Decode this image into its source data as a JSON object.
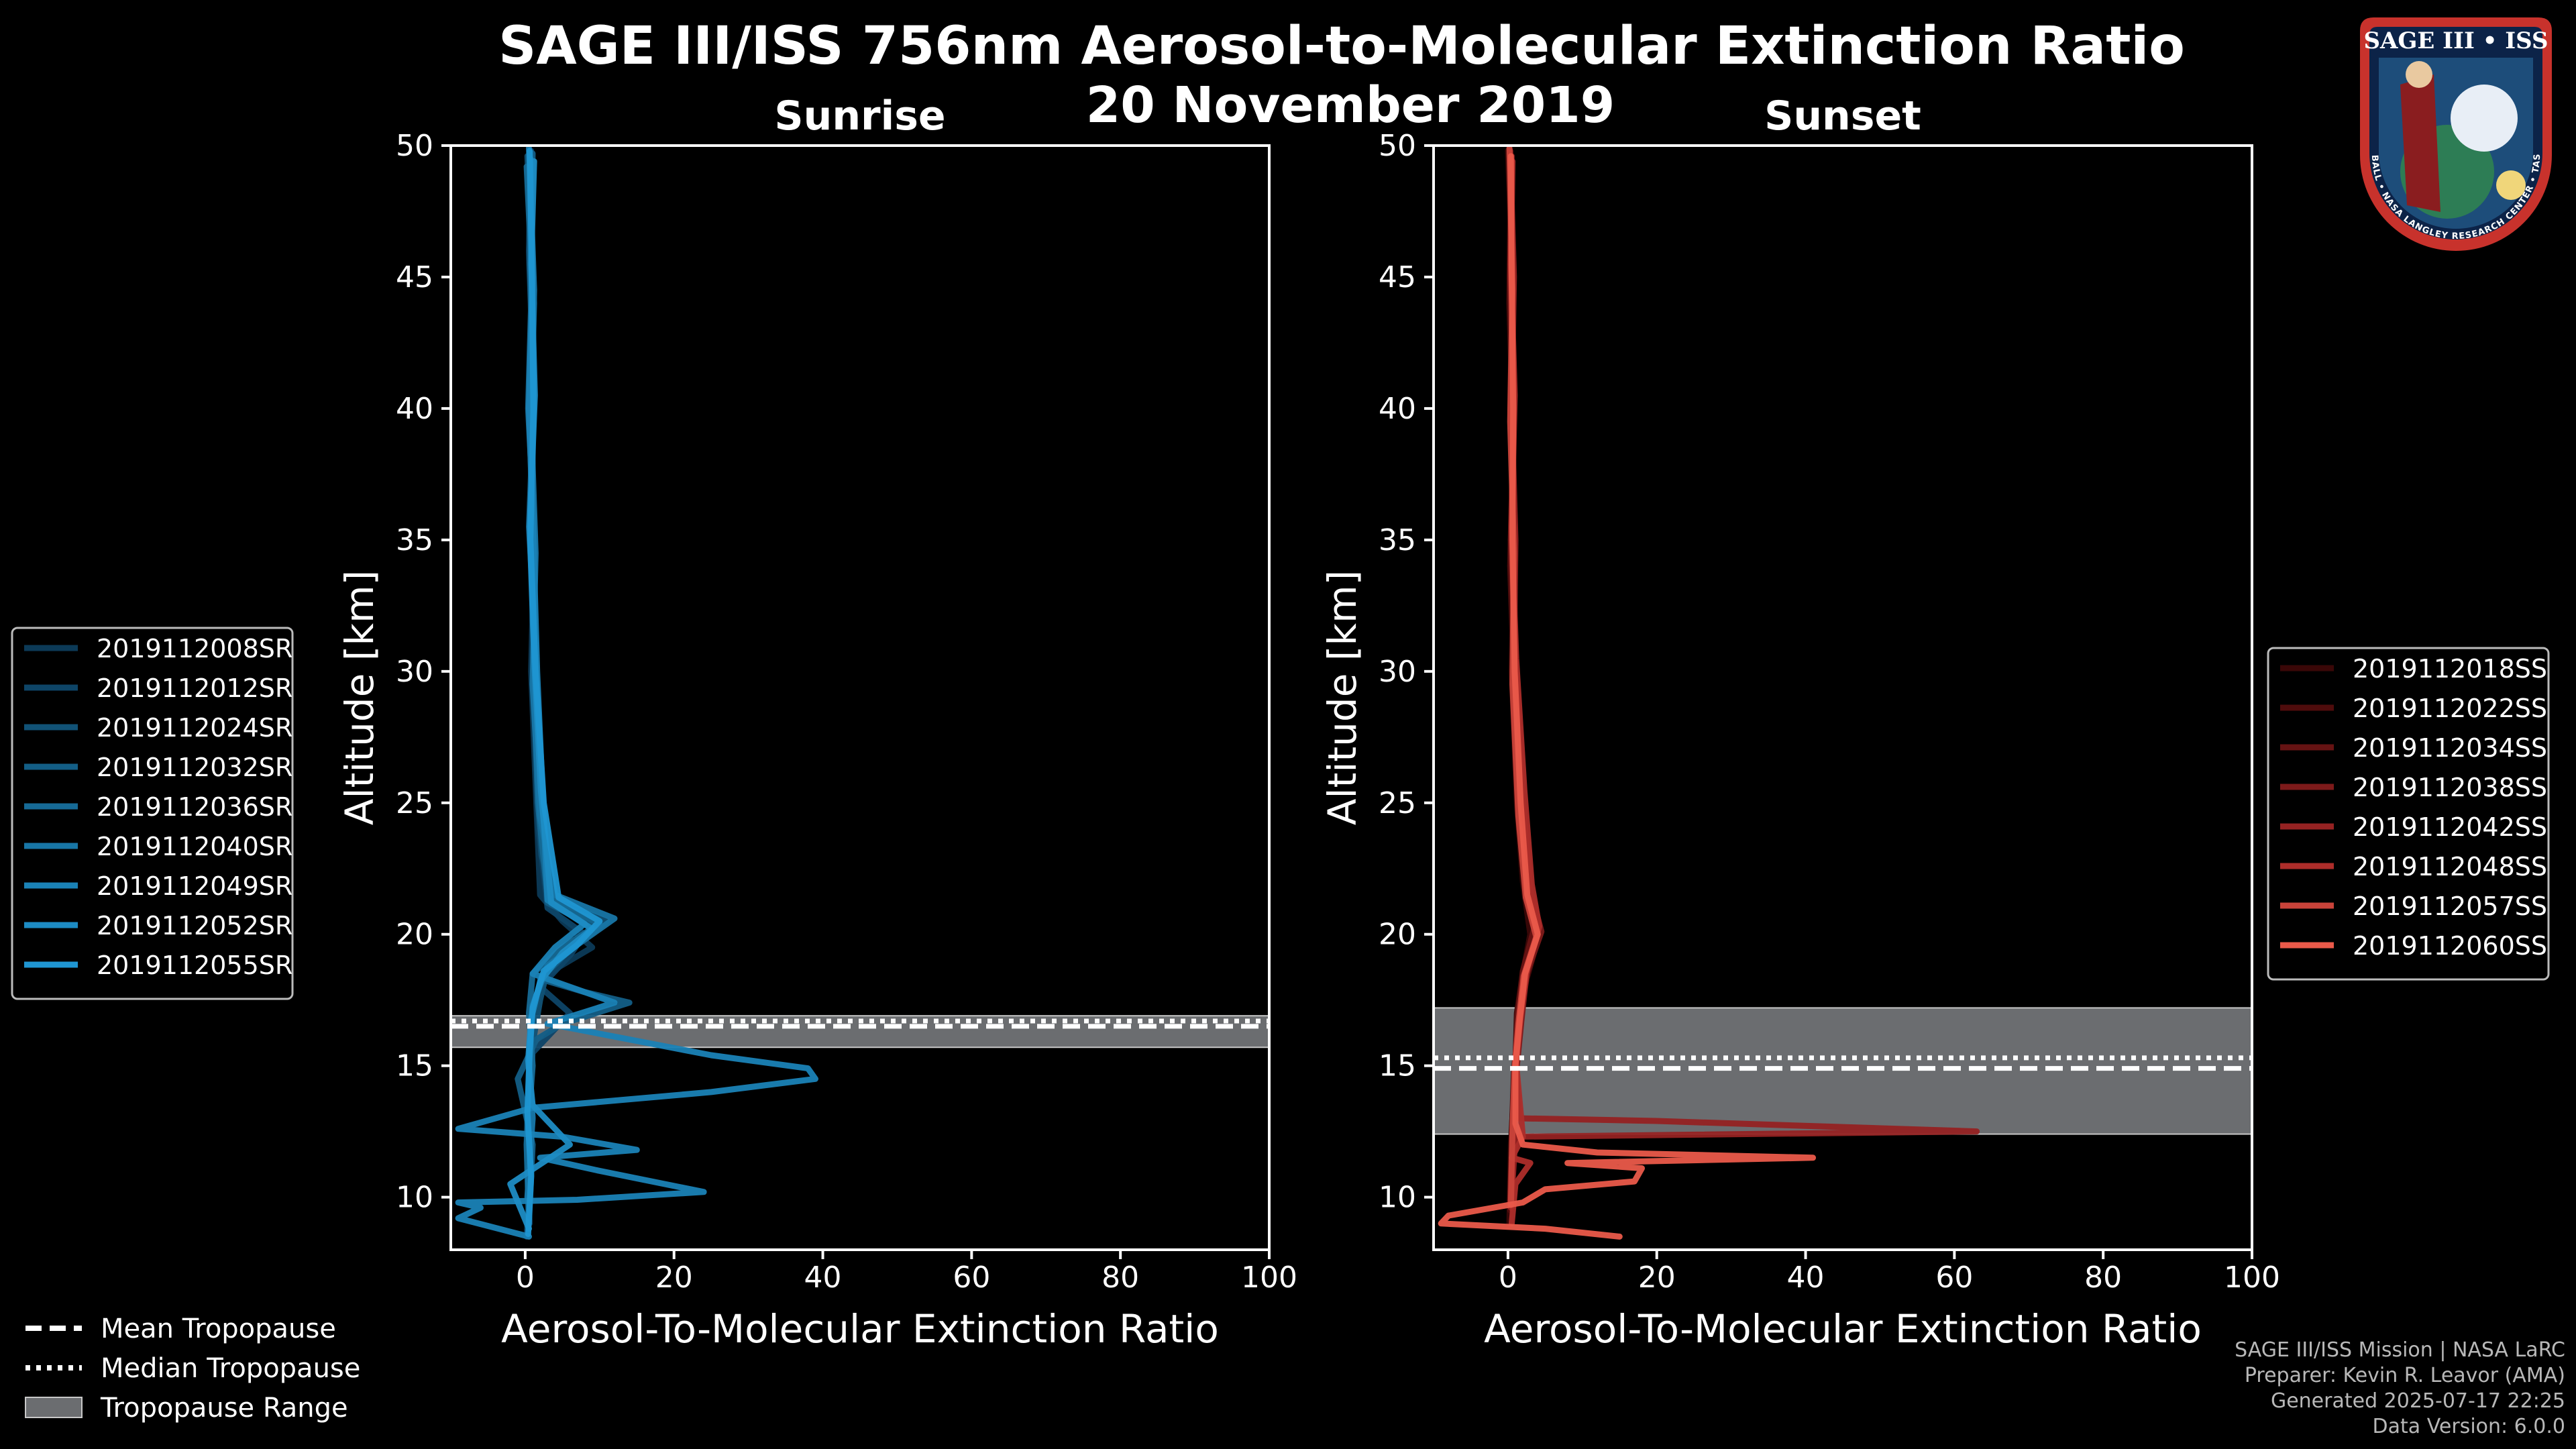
{
  "title": "SAGE III/ISS 756nm Aerosol-to-Molecular Extinction Ratio",
  "date": "20 November 2019",
  "legend_bottom": [
    {
      "label": "Mean Tropopause",
      "style": "dashed"
    },
    {
      "label": "Median Tropopause",
      "style": "dotted"
    },
    {
      "label": "Tropopause Range",
      "style": "patch"
    }
  ],
  "logo": {
    "text": "SAGE III • ISS",
    "ring_text": "BALL • NASA LANGLEY RESEARCH CENTER • TAS-I • ESA"
  },
  "footer": {
    "line1": "SAGE III/ISS Mission | NASA LaRC",
    "line2": "Preparer: Kevin R. Leavor (AMA)",
    "line3": "Generated 2025-07-17 22:25",
    "line4": "Data Version: 6.0.0"
  },
  "colors": {
    "sunrise": "#1f8fce",
    "sunset": "#ea5a4a",
    "range": "#6b6d70"
  },
  "chart_data": [
    {
      "type": "line",
      "title": "Sunrise",
      "xlabel": "Aerosol-To-Molecular Extinction Ratio",
      "ylabel": "Altitude [km]",
      "xlim": [
        -10,
        100
      ],
      "ylim": [
        8,
        50
      ],
      "xticks": [
        0,
        20,
        40,
        60,
        80,
        100
      ],
      "yticks": [
        10,
        15,
        20,
        25,
        30,
        35,
        40,
        45,
        50
      ],
      "tropopause": {
        "mean": 16.5,
        "median": 16.7,
        "range": [
          15.7,
          16.9
        ]
      },
      "legend_position": "center-left",
      "series": [
        {
          "name": "2019112008SR",
          "color": "#0c3a57",
          "x": [
            0.5,
            1,
            0.6,
            1.2,
            0.8,
            1.5,
            2,
            5,
            9,
            3,
            1,
            0.5,
            1,
            0.3,
            0.6
          ],
          "y": [
            49.5,
            45,
            40,
            35,
            30,
            25,
            21.5,
            20.5,
            19.5,
            18.5,
            17,
            15,
            13,
            11,
            9
          ]
        },
        {
          "name": "2019112012SR",
          "color": "#0e4567",
          "x": [
            0.8,
            0.5,
            1.1,
            0.9,
            1.3,
            1.8,
            3,
            8,
            6,
            2,
            6,
            1,
            0.4,
            0.8,
            0.2
          ],
          "y": [
            49.8,
            46,
            41,
            34,
            29,
            24,
            21,
            20,
            19.2,
            18,
            17,
            15.5,
            13.5,
            11,
            8.5
          ]
        },
        {
          "name": "2019112024SR",
          "color": "#115276",
          "x": [
            0.3,
            1.2,
            0.7,
            1,
            1.4,
            2.2,
            4,
            11,
            7,
            3,
            2,
            0.5,
            0.2,
            0.5
          ],
          "y": [
            49.6,
            44,
            39,
            33,
            28,
            23,
            21.3,
            20.5,
            19.6,
            18.7,
            17.5,
            15,
            12,
            9.5
          ]
        },
        {
          "name": "2019112032SR",
          "color": "#135e86",
          "x": [
            1,
            0.6,
            1.2,
            0.5,
            1.5,
            2,
            3,
            9,
            6,
            2,
            8,
            14,
            5,
            1.5,
            -1,
            1,
            0.5
          ],
          "y": [
            49.7,
            45.5,
            40.5,
            35.5,
            30.5,
            25.5,
            21.2,
            20.3,
            19.4,
            18.3,
            17.8,
            17.4,
            16.6,
            16,
            14.5,
            12,
            9
          ]
        },
        {
          "name": "2019112036SR",
          "color": "#166a96",
          "x": [
            0.2,
            0.9,
            0.4,
            1.3,
            1.1,
            1.7,
            3,
            10,
            5,
            1,
            0.5,
            1,
            0.2,
            0.5
          ],
          "y": [
            49.2,
            45,
            40,
            35,
            30,
            25,
            21.4,
            20.4,
            19.5,
            18.5,
            17,
            15,
            12,
            9
          ]
        },
        {
          "name": "2019112040SR",
          "color": "#1876a6",
          "x": [
            0.5,
            1.2,
            0.8,
            1.4,
            1,
            2,
            4,
            12,
            8,
            3,
            1,
            0.5,
            1,
            0.3
          ],
          "y": [
            49.9,
            44.5,
            39.5,
            34.5,
            29.5,
            24.5,
            21.5,
            20.6,
            19.8,
            18.8,
            17.3,
            15.2,
            13,
            10
          ]
        },
        {
          "name": "2019112049SR",
          "color": "#1a82b6",
          "x": [
            0.7,
            1,
            0.5,
            1.1,
            1.6,
            2.4,
            3,
            8,
            4,
            1,
            12,
            3,
            25,
            38,
            39,
            25,
            1,
            -9,
            5,
            15,
            2,
            10,
            24,
            7,
            -9,
            -6,
            -9,
            0.5
          ],
          "y": [
            49.5,
            45,
            40,
            35,
            30,
            25,
            21.3,
            20.4,
            19.5,
            18.5,
            17.4,
            16.6,
            15.4,
            14.9,
            14.5,
            14,
            13.4,
            12.6,
            12.3,
            11.8,
            11.5,
            11,
            10.2,
            9.9,
            9.8,
            9.6,
            9.2,
            8.5
          ]
        },
        {
          "name": "2019112052SR",
          "color": "#1d8cc4",
          "x": [
            1.2,
            0.8,
            1.3,
            0.6,
            1.2,
            2.1,
            3.5,
            9,
            5,
            2,
            0.8,
            0.4,
            1,
            6,
            -2,
            0.5
          ],
          "y": [
            49.4,
            45.5,
            40.5,
            35.5,
            30.5,
            25.5,
            21.2,
            20.2,
            19.3,
            18.2,
            16.8,
            15.2,
            13.5,
            12,
            10.5,
            8.8
          ]
        },
        {
          "name": "2019112055SR",
          "color": "#1f96d2",
          "x": [
            0.6,
            0.9,
            1.1,
            0.7,
            1.4,
            2.5,
            4.5,
            10,
            7,
            2.5,
            1,
            0.6,
            0.3,
            0.8,
            0.4
          ],
          "y": [
            49.8,
            45,
            40,
            35,
            30,
            25,
            21.4,
            20.5,
            19.6,
            18.6,
            17.2,
            15.5,
            13.2,
            10.8,
            8.6
          ]
        }
      ]
    },
    {
      "type": "line",
      "title": "Sunset",
      "xlabel": "Aerosol-To-Molecular Extinction Ratio",
      "ylabel": "Altitude [km]",
      "xlim": [
        -10,
        100
      ],
      "ylim": [
        8,
        50
      ],
      "xticks": [
        0,
        20,
        40,
        60,
        80,
        100
      ],
      "yticks": [
        10,
        15,
        20,
        25,
        30,
        35,
        40,
        45,
        50
      ],
      "tropopause": {
        "mean": 14.9,
        "median": 15.3,
        "range": [
          12.4,
          17.2
        ]
      },
      "legend_position": "center-right",
      "series": [
        {
          "name": "2019112018SS",
          "color": "#3a0707",
          "x": [
            0,
            0.6,
            0.3,
            0.8,
            0.5,
            1.2,
            2,
            3,
            2,
            1.2,
            1,
            0.4,
            0.2
          ],
          "y": [
            49.8,
            45,
            40,
            35,
            30,
            25,
            22,
            20,
            18.5,
            17,
            15,
            12,
            9
          ]
        },
        {
          "name": "2019112022SS",
          "color": "#4f0c0c",
          "x": [
            0.4,
            0.2,
            0.7,
            0.3,
            0.9,
            1.5,
            3,
            4,
            2.5,
            1.5,
            0.8,
            0.5,
            0.3
          ],
          "y": [
            49.5,
            44,
            39,
            34,
            29,
            24,
            21.5,
            19.8,
            18.3,
            16.8,
            14.8,
            12.2,
            9.5
          ]
        },
        {
          "name": "2019112034SS",
          "color": "#661313",
          "x": [
            0.2,
            0.7,
            0.4,
            0.9,
            0.7,
            1.8,
            2.5,
            3.5,
            2,
            1.3,
            1,
            0.7,
            0.5
          ],
          "y": [
            49.7,
            45.5,
            40.5,
            35.5,
            30.5,
            25.5,
            21.8,
            20.2,
            18.6,
            16.9,
            15.2,
            12.6,
            10
          ]
        },
        {
          "name": "2019112038SS",
          "color": "#7d1a1a",
          "x": [
            0.5,
            0.3,
            0.8,
            0.4,
            1,
            2,
            3,
            4.5,
            2.5,
            1.8,
            1.2,
            0.6,
            0.3
          ],
          "y": [
            49.6,
            45,
            40,
            35,
            30,
            25,
            21.7,
            20.1,
            18.5,
            16.7,
            15,
            12.4,
            9.8
          ]
        },
        {
          "name": "2019112042SS",
          "color": "#952222",
          "x": [
            0.3,
            0.8,
            0.5,
            1,
            0.8,
            1.6,
            2.8,
            4,
            2.2,
            1.5,
            1,
            1.5,
            20,
            63,
            1,
            0.4
          ],
          "y": [
            49.8,
            45,
            40,
            35,
            30,
            25,
            21.6,
            20,
            18.4,
            16.8,
            15,
            13,
            12.9,
            12.5,
            12.3,
            9.6
          ]
        },
        {
          "name": "2019112048SS",
          "color": "#ad2d2a",
          "x": [
            0.6,
            0.4,
            0.9,
            0.5,
            1.1,
            2.2,
            3.2,
            4.2,
            2.6,
            1.7,
            1.1,
            2,
            0.5,
            3,
            1,
            0.5
          ],
          "y": [
            49.4,
            45.5,
            40.5,
            35.5,
            30.5,
            25.5,
            21.9,
            20.3,
            18.7,
            16.9,
            15.1,
            12.3,
            11.5,
            11.3,
            10.5,
            9
          ]
        },
        {
          "name": "2019112057SS",
          "color": "#c9433a",
          "x": [
            0.2,
            0.6,
            0.3,
            0.8,
            0.6,
            1.4,
            2.4,
            3.8,
            2.1,
            1.4,
            0.9,
            0.6,
            0.4
          ],
          "y": [
            49.9,
            44.5,
            39.5,
            34.5,
            29.5,
            24.5,
            21.4,
            19.9,
            18.4,
            16.6,
            14.9,
            12.5,
            9.7
          ]
        },
        {
          "name": "2019112060SS",
          "color": "#ea5a4a",
          "x": [
            0.4,
            0.5,
            0.7,
            0.6,
            0.9,
            1.7,
            2.6,
            4,
            2.3,
            1.6,
            1,
            1,
            2,
            12,
            41,
            8,
            18,
            17,
            5,
            2,
            -8,
            -9,
            5,
            15
          ],
          "y": [
            49.6,
            45,
            40,
            35,
            30,
            25,
            21.5,
            20,
            18.5,
            16.8,
            15,
            12.8,
            12,
            11.7,
            11.5,
            11.3,
            11.1,
            10.6,
            10.3,
            9.8,
            9.3,
            9,
            8.8,
            8.5
          ]
        }
      ]
    }
  ]
}
